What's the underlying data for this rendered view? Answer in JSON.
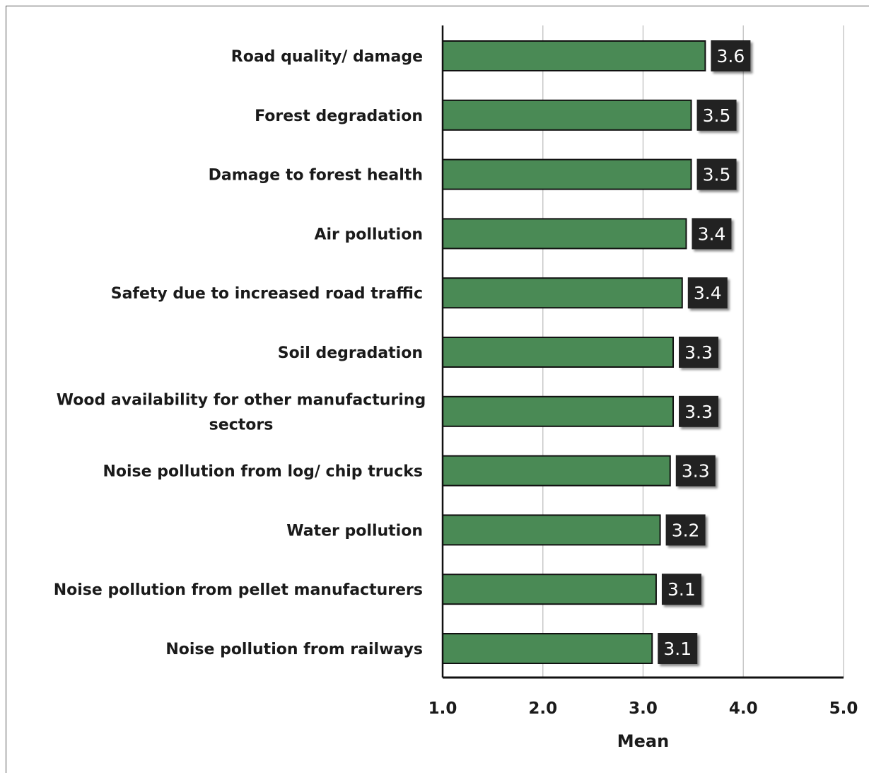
{
  "chart_data": {
    "type": "bar",
    "orientation": "horizontal",
    "categories": [
      "Road quality/ damage",
      "Forest degradation",
      "Damage to forest health",
      "Air pollution",
      "Safety due to increased road traffic",
      "Soil degradation",
      "Wood availability for other manufacturing sectors",
      "Noise pollution from log/ chip trucks",
      "Water pollution",
      "Noise pollution from pellet manufacturers",
      "Noise pollution from railways"
    ],
    "category_lines": [
      [
        "Road quality/ damage"
      ],
      [
        "Forest degradation"
      ],
      [
        "Damage to forest health"
      ],
      [
        "Air pollution"
      ],
      [
        "Safety due to increased road traffic"
      ],
      [
        "Soil degradation"
      ],
      [
        "Wood availability for other manufacturing",
        "sectors"
      ],
      [
        "Noise pollution from log/ chip trucks"
      ],
      [
        "Water pollution"
      ],
      [
        "Noise pollution from pellet manufacturers"
      ],
      [
        "Noise pollution from railways"
      ]
    ],
    "values": [
      3.62,
      3.48,
      3.48,
      3.43,
      3.39,
      3.3,
      3.3,
      3.27,
      3.17,
      3.13,
      3.09
    ],
    "data_labels": [
      "3.6",
      "3.5",
      "3.5",
      "3.4",
      "3.4",
      "3.3",
      "3.3",
      "3.3",
      "3.2",
      "3.1",
      "3.1"
    ],
    "xlabel": "Mean",
    "xlim": [
      1.0,
      5.0
    ],
    "xticks": [
      1.0,
      2.0,
      3.0,
      4.0,
      5.0
    ],
    "xtick_labels": [
      "1.0",
      "2.0",
      "3.0",
      "4.0",
      "5.0"
    ],
    "grid": true,
    "legend": "none",
    "colors": {
      "bar_fill": "#4a8a55",
      "bar_stroke": "#111111",
      "label_box": "#222222",
      "label_text": "#ffffff",
      "grid": "#c8c8c8"
    }
  }
}
